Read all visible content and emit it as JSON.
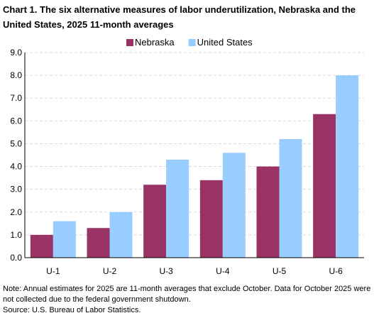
{
  "chart_data": {
    "type": "bar",
    "title": "Chart 1. The six alternative measures of labor underutilization, Nebraska and the United States, 2025 11-month averages",
    "categories": [
      "U-1",
      "U-2",
      "U-3",
      "U-4",
      "U-5",
      "U-6"
    ],
    "series": [
      {
        "name": "Nebraska",
        "color": "#993366",
        "values": [
          1.0,
          1.3,
          3.2,
          3.4,
          4.0,
          6.3
        ]
      },
      {
        "name": "United States",
        "color": "#99ccff",
        "values": [
          1.6,
          2.0,
          4.3,
          4.6,
          5.2,
          8.0
        ]
      }
    ],
    "ylim": [
      0,
      9
    ],
    "yticks": [
      "0.0",
      "1.0",
      "2.0",
      "3.0",
      "4.0",
      "5.0",
      "6.0",
      "7.0",
      "8.0",
      "9.0"
    ],
    "grid": true,
    "legend_position": "top-center"
  },
  "footer": {
    "note": "Note: Annual estimates for 2025 are 11-month averages that exclude October. Data for October 2025 were not collected due to the federal government shutdown.",
    "source": "Source: U.S. Bureau of Labor Statistics."
  }
}
